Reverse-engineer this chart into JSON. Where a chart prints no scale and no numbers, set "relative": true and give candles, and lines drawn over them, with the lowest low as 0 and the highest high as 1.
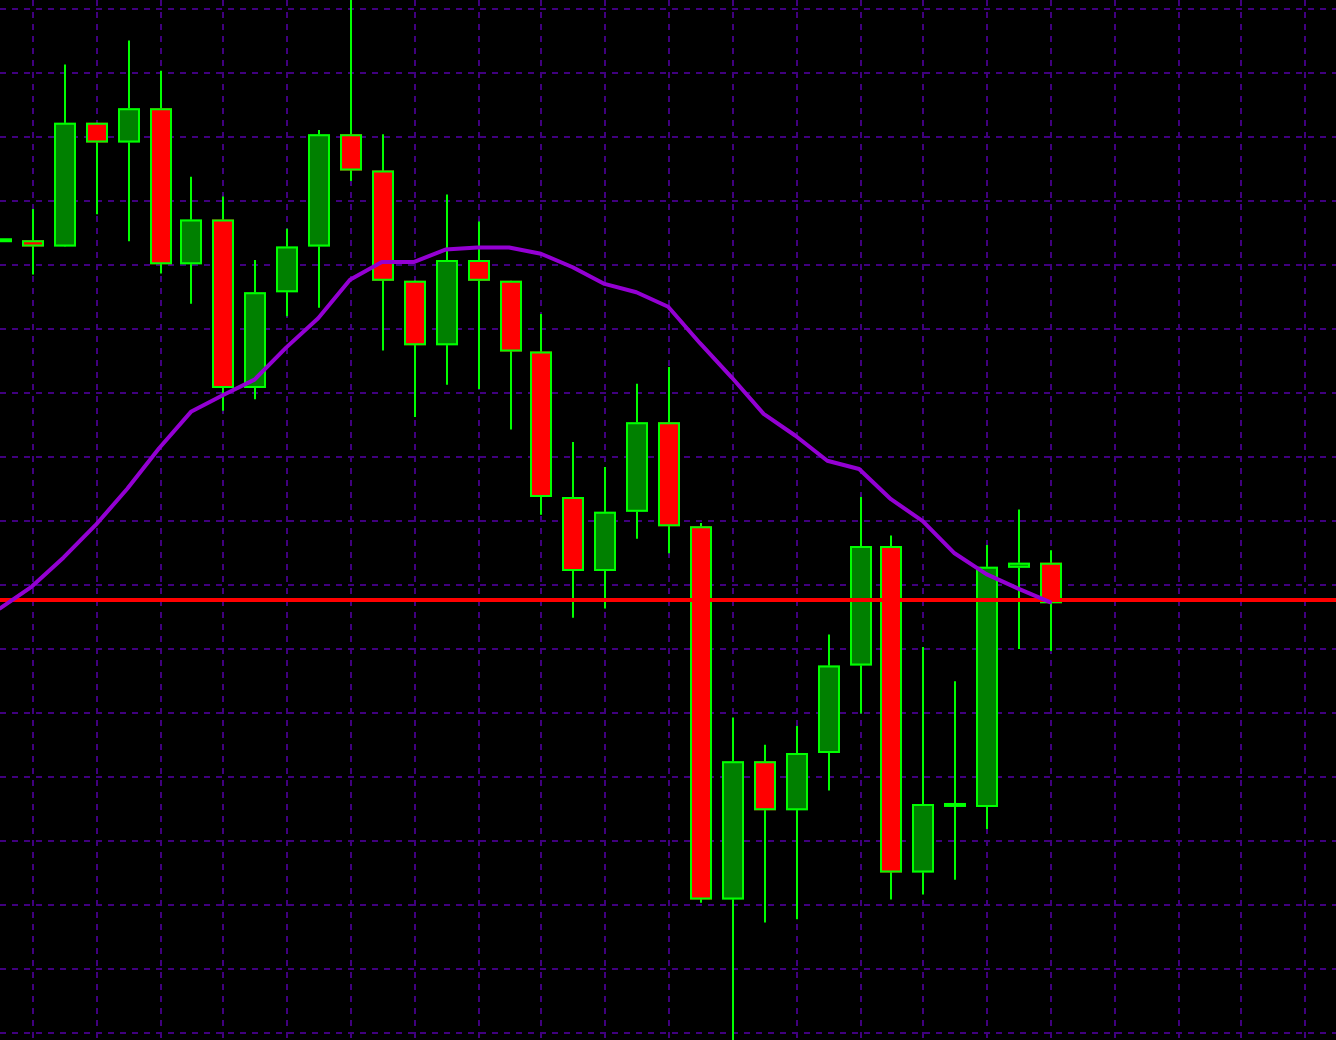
{
  "chart_data": {
    "type": "candlestick",
    "relative": true,
    "grid": true,
    "categories": [
      null,
      null,
      null,
      null,
      null,
      null,
      null,
      null,
      null,
      null,
      null,
      null,
      null,
      null,
      null,
      null,
      null,
      null,
      null,
      null,
      null,
      null,
      null,
      null,
      null,
      null,
      null,
      null,
      null,
      null,
      null,
      null,
      null,
      null
    ],
    "ohlc": [
      [
        0.769,
        0.769,
        0.769,
        0.769
      ],
      [
        0.769,
        0.799,
        0.736,
        0.763
      ],
      [
        0.763,
        0.938,
        0.763,
        0.882
      ],
      [
        0.882,
        0.882,
        0.794,
        0.863
      ],
      [
        0.863,
        0.961,
        0.768,
        0.896
      ],
      [
        0.896,
        0.932,
        0.737,
        0.746
      ],
      [
        0.746,
        0.83,
        0.708,
        0.789
      ],
      [
        0.789,
        0.811,
        0.605,
        0.627
      ],
      [
        0.627,
        0.75,
        0.616,
        0.719
      ],
      [
        0.719,
        0.78,
        0.696,
        0.763
      ],
      [
        0.763,
        0.875,
        0.704,
        0.871
      ],
      [
        0.871,
        1,
        0.826,
        0.836
      ],
      [
        0.836,
        0.871,
        0.663,
        0.73
      ],
      [
        0.73,
        0.73,
        0.599,
        0.668
      ],
      [
        0.668,
        0.813,
        0.63,
        0.75
      ],
      [
        0.75,
        0.787,
        0.626,
        0.73
      ],
      [
        0.73,
        0.73,
        0.587,
        0.662
      ],
      [
        0.662,
        0.698,
        0.505,
        0.522
      ],
      [
        0.522,
        0.575,
        0.406,
        0.451
      ],
      [
        0.451,
        0.551,
        0.415,
        0.508
      ],
      [
        0.508,
        0.631,
        0.482,
        0.594
      ],
      [
        0.594,
        0.647,
        0.468,
        0.494
      ],
      [
        0.494,
        0.497,
        0.132,
        0.135
      ],
      [
        0.135,
        0.31,
        0,
        0.268
      ],
      [
        0.268,
        0.284,
        0.113,
        0.221
      ],
      [
        0.221,
        0.302,
        0.116,
        0.276
      ],
      [
        0.276,
        0.39,
        0.24,
        0.36
      ],
      [
        0.36,
        0.522,
        0.314,
        0.475
      ],
      [
        0.475,
        0.485,
        0.135,
        0.161
      ],
      [
        0.161,
        0.378,
        0.14,
        0.227
      ],
      [
        0.226,
        0.345,
        0.154,
        0.226
      ],
      [
        0.224,
        0.476,
        0.203,
        0.455
      ],
      [
        0.454,
        0.51,
        0.376,
        0.459
      ],
      [
        0.459,
        0.471,
        0.374,
        0.42
      ]
    ],
    "color": "#00ff00",
    "colors": [
      "#00ff00",
      "#ff0000",
      "#008000",
      "#ff0000",
      "#008000",
      "#ff0000",
      "#008000",
      "#ff0000",
      "#008000",
      "#008000",
      "#008000",
      "#ff0000",
      "#ff0000",
      "#ff0000",
      "#008000",
      "#ff0000",
      "#ff0000",
      "#ff0000",
      "#ff0000",
      "#008000",
      "#008000",
      "#ff0000",
      "#ff0000",
      "#008000",
      "#ff0000",
      "#008000",
      "#008000",
      "#008000",
      "#ff0000",
      "#008000",
      "#00ff00",
      "#008000",
      "#008000",
      "#ff0000"
    ],
    "series": [
      {
        "type": "line",
        "color": "#9400d3",
        "values": [
          0.415,
          0.436,
          0.464,
          0.495,
          0.53,
          0.569,
          0.604,
          0.62,
          0.635,
          0.666,
          0.694,
          0.731,
          0.748,
          0.748,
          0.76,
          0.762,
          0.762,
          0.756,
          0.743,
          0.727,
          0.719,
          0.705,
          0.67,
          0.637,
          0.602,
          0.581,
          0.557,
          0.549,
          0.52,
          0.499,
          0.468,
          0.448,
          0.434,
          0.421
        ]
      }
    ],
    "ref_lines": [
      {
        "axis": "y",
        "value": 0.423,
        "color": "#ff0000"
      }
    ]
  }
}
